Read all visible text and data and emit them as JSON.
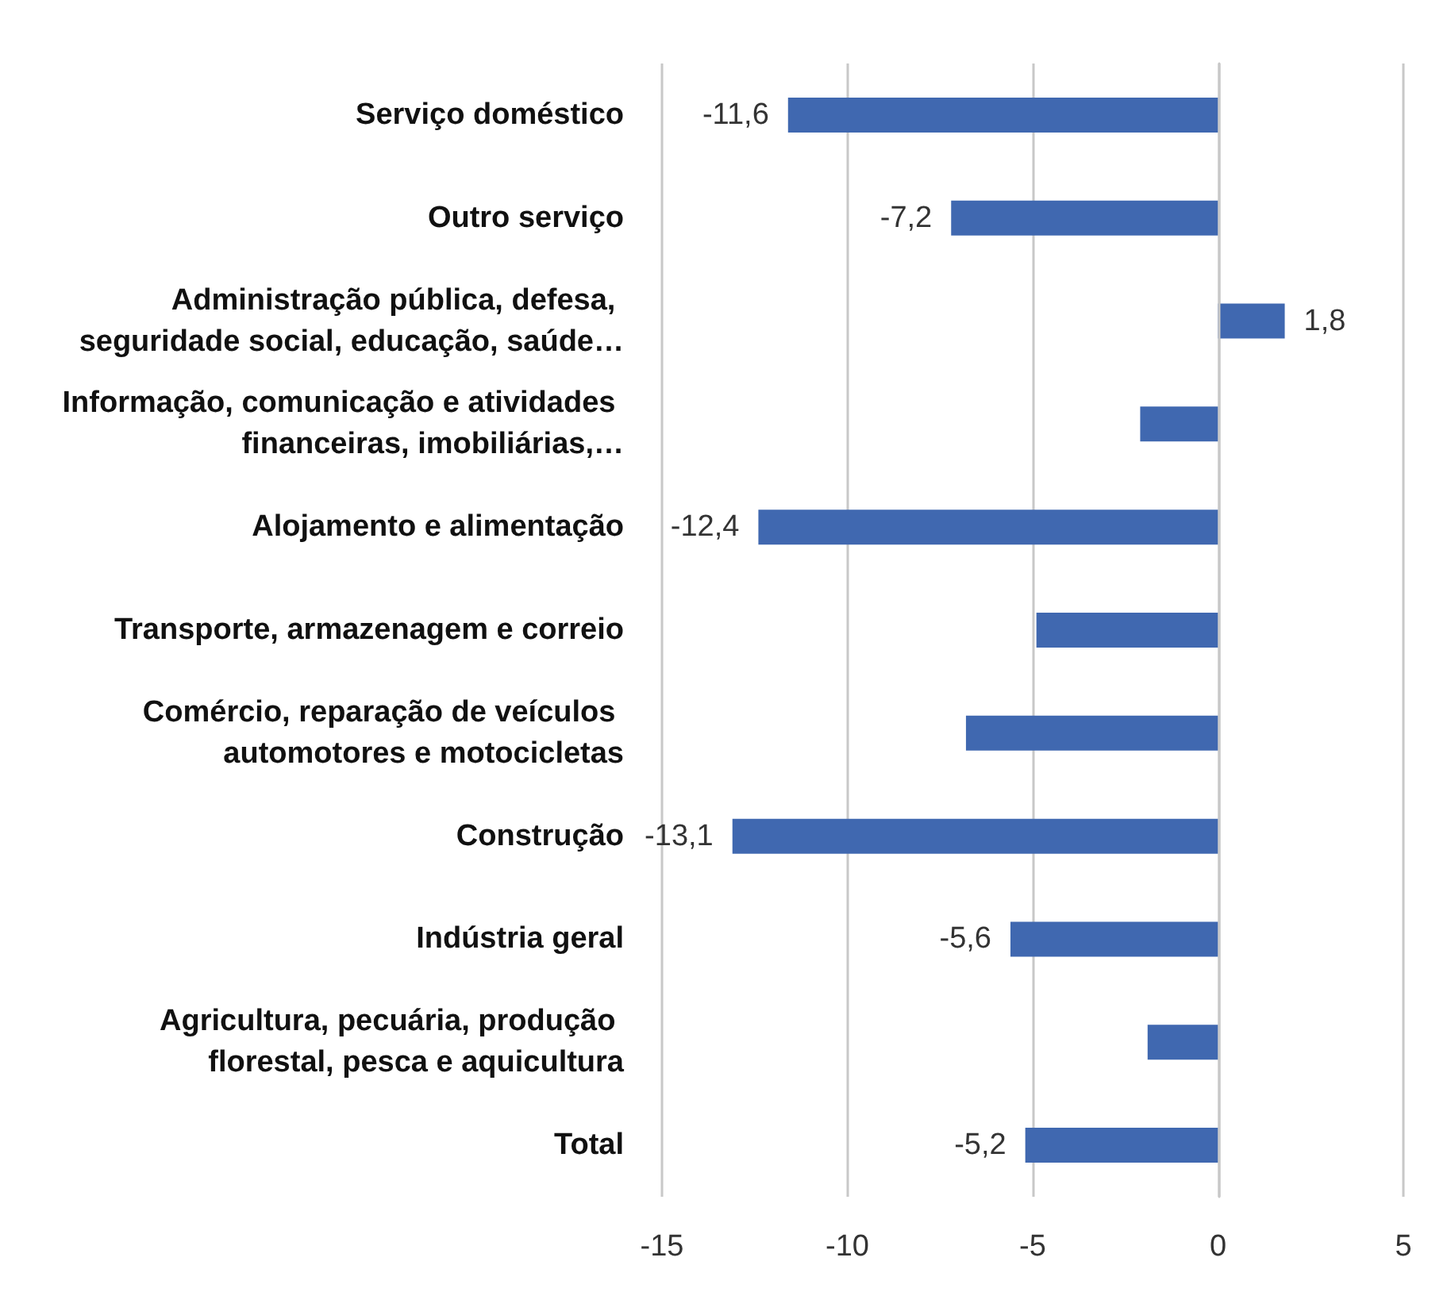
{
  "chart_data": {
    "type": "bar",
    "orientation": "horizontal",
    "categories": [
      "Serviço doméstico",
      "Outro serviço",
      "Administração pública, defesa, seguridade social, educação, saúde…",
      "Informação, comunicação e atividades financeiras, imobiliárias,…",
      "Alojamento e alimentação",
      "Transporte, armazenagem e correio",
      "Comércio, reparação de veículos automotores e motocicletas",
      "Construção",
      "Indústria geral",
      "Agricultura, pecuária, produção florestal, pesca e aquicultura",
      "Total"
    ],
    "values": [
      -11.6,
      -7.2,
      1.8,
      -2.1,
      -12.4,
      -4.9,
      -6.8,
      -13.1,
      -5.6,
      -1.9,
      -5.2
    ],
    "value_labels": [
      "-11,6",
      "-7,2",
      "1,8",
      null,
      "-12,4",
      null,
      null,
      "-13,1",
      "-5,6",
      null,
      "-5,2"
    ],
    "color": "#4068b0",
    "xlim": [
      -15,
      5
    ],
    "xticks": [
      -15,
      -10,
      -5,
      0,
      5
    ],
    "grid": "x"
  }
}
